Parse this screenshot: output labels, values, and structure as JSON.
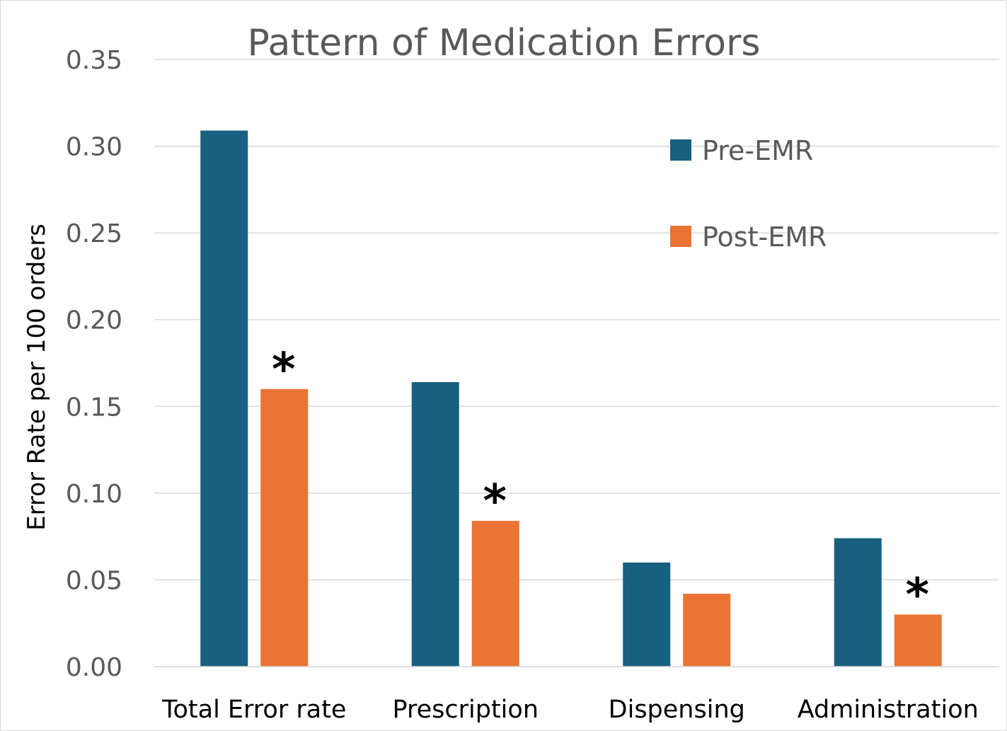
{
  "chart_data": {
    "type": "bar",
    "title": "Pattern of Medication Errors",
    "xlabel": "",
    "ylabel": "Error Rate per 100 orders",
    "ylim": [
      0,
      0.35
    ],
    "yticks": [
      "0.00",
      "0.05",
      "0.10",
      "0.15",
      "0.20",
      "0.25",
      "0.30",
      "0.35"
    ],
    "ytick_values": [
      0,
      0.05,
      0.1,
      0.15,
      0.2,
      0.25,
      0.3,
      0.35
    ],
    "grid": true,
    "legend_position": "top-right",
    "categories": [
      "Total Error rate",
      "Prescription",
      "Dispensing",
      "Administration"
    ],
    "series": [
      {
        "name": "Pre-EMR",
        "color": "#17607f",
        "values": [
          0.309,
          0.164,
          0.06,
          0.074
        ]
      },
      {
        "name": "Post-EMR",
        "color": "#e97434",
        "values": [
          0.16,
          0.084,
          0.042,
          0.03
        ]
      }
    ],
    "annotations": [
      {
        "category": "Total Error rate",
        "series": "Post-EMR",
        "text": "*"
      },
      {
        "category": "Prescription",
        "series": "Post-EMR",
        "text": "*"
      },
      {
        "category": "Administration",
        "series": "Post-EMR",
        "text": "*"
      }
    ]
  }
}
